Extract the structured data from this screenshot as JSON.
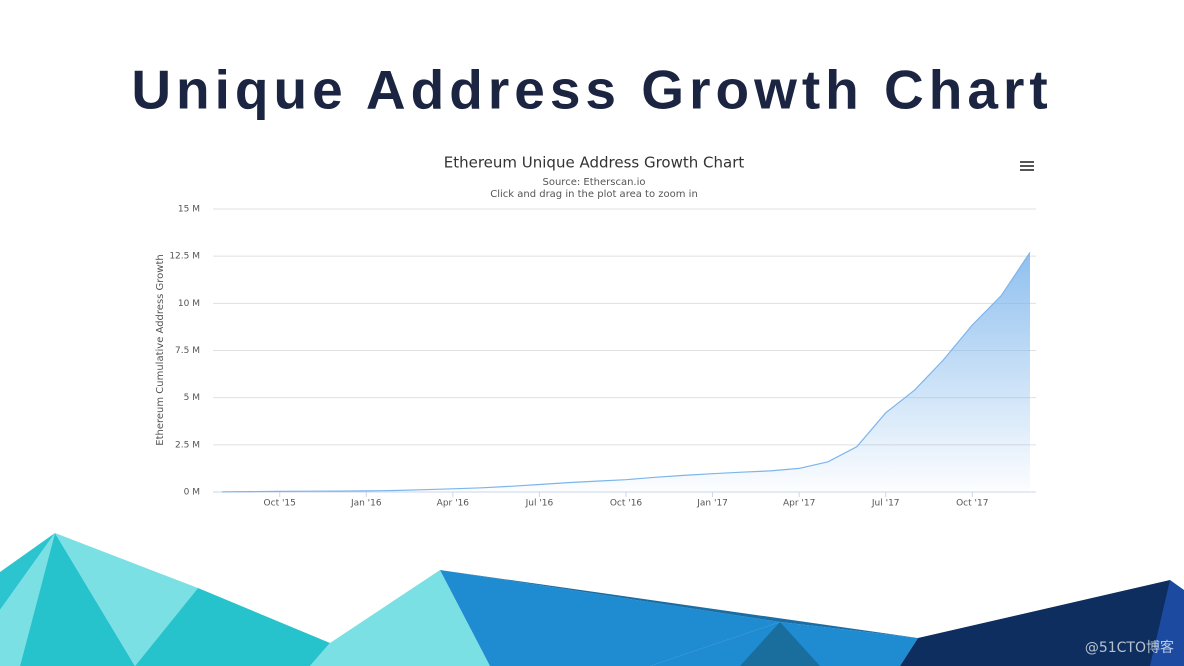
{
  "slide_title": "Unique Address Growth Chart",
  "watermark": "@51CTO博客",
  "chart_data": {
    "type": "area",
    "title": "Ethereum Unique Address Growth Chart",
    "subtitle": "Source: Etherscan.io",
    "note": "Click and drag in the plot area to zoom in",
    "y_label": "Ethereum Cumulative Address Growth",
    "color": "#7cb5ec",
    "grid": true,
    "x": [
      "2015-08",
      "2015-09",
      "2015-10",
      "2015-11",
      "2015-12",
      "2016-01",
      "2016-02",
      "2016-03",
      "2016-04",
      "2016-05",
      "2016-06",
      "2016-07",
      "2016-08",
      "2016-09",
      "2016-10",
      "2016-11",
      "2016-12",
      "2017-01",
      "2017-02",
      "2017-03",
      "2017-04",
      "2017-05",
      "2017-06",
      "2017-07",
      "2017-08",
      "2017-09",
      "2017-10",
      "2017-11",
      "2017-12"
    ],
    "values": [
      10000,
      20000,
      30000,
      40000,
      50000,
      60000,
      80000,
      120000,
      170000,
      220000,
      300000,
      400000,
      500000,
      580000,
      650000,
      780000,
      880000,
      970000,
      1050000,
      1120000,
      1250000,
      1600000,
      2400000,
      4200000,
      5400000,
      7000000,
      8850000,
      10400000,
      12700000
    ],
    "xlim": [
      "2015-08",
      "2017-12"
    ],
    "xticks": [
      {
        "value": "2015-10",
        "label": "Oct '15"
      },
      {
        "value": "2016-01",
        "label": "Jan '16"
      },
      {
        "value": "2016-04",
        "label": "Apr '16"
      },
      {
        "value": "2016-07",
        "label": "Jul '16"
      },
      {
        "value": "2016-10",
        "label": "Oct '16"
      },
      {
        "value": "2017-01",
        "label": "Jan '17"
      },
      {
        "value": "2017-04",
        "label": "Apr '17"
      },
      {
        "value": "2017-07",
        "label": "Jul '17"
      },
      {
        "value": "2017-10",
        "label": "Oct '17"
      }
    ],
    "ylim": [
      0,
      15000000
    ],
    "yticks": [
      {
        "value": 0,
        "label": "0 M"
      },
      {
        "value": 2500000,
        "label": "2.5 M"
      },
      {
        "value": 5000000,
        "label": "5 M"
      },
      {
        "value": 7500000,
        "label": "7.5 M"
      },
      {
        "value": 10000000,
        "label": "10 M"
      },
      {
        "value": 12500000,
        "label": "12.5 M"
      },
      {
        "value": 15000000,
        "label": "15 M"
      }
    ]
  }
}
